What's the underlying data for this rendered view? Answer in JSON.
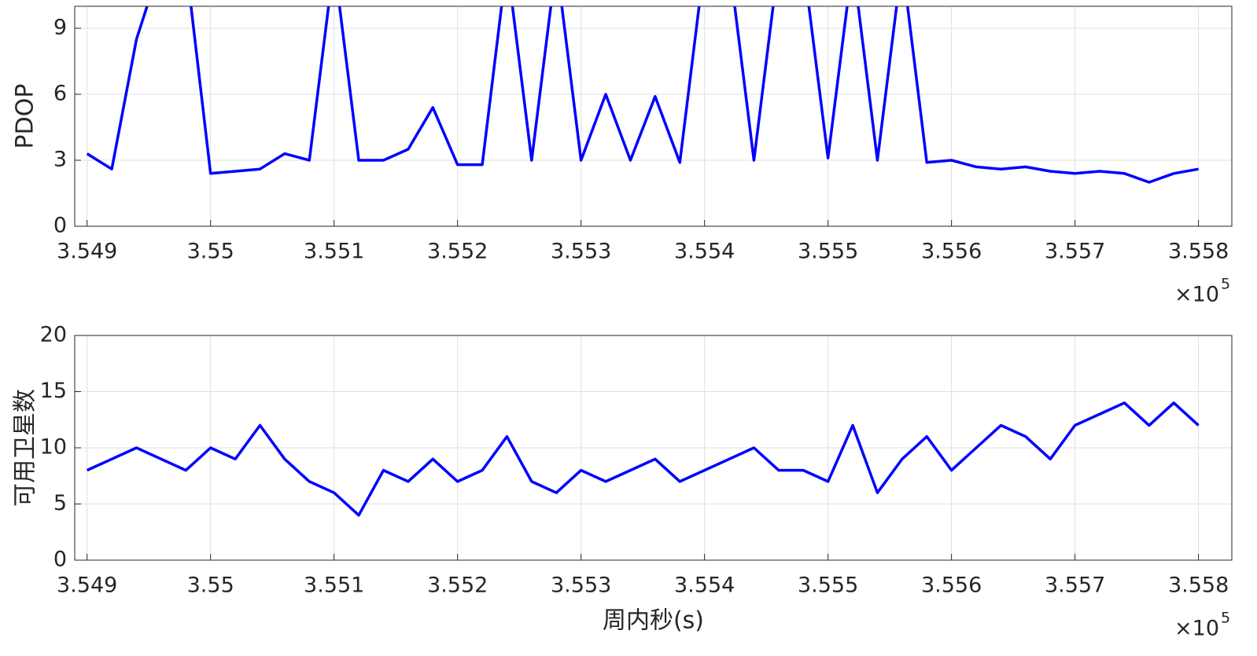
{
  "chart_data": [
    {
      "type": "line",
      "ylabel": "PDOP",
      "color": "#0000ff",
      "grid": true,
      "x": [
        354900,
        354920,
        354940,
        354960,
        354980,
        355000,
        355020,
        355040,
        355060,
        355080,
        355100,
        355120,
        355140,
        355160,
        355180,
        355200,
        355220,
        355240,
        355260,
        355280,
        355300,
        355320,
        355340,
        355360,
        355380,
        355400,
        355420,
        355440,
        355460,
        355480,
        355500,
        355520,
        355540,
        355560,
        355580,
        355600,
        355620,
        355640,
        355660,
        355680,
        355700,
        355720,
        355740,
        355760,
        355780,
        355800
      ],
      "values": [
        3.3,
        2.6,
        8.5,
        12,
        12,
        2.4,
        2.5,
        2.6,
        3.3,
        3.0,
        12,
        3.0,
        3.0,
        3.5,
        5.4,
        2.8,
        2.8,
        12,
        3.0,
        12,
        3.0,
        6.0,
        3.0,
        5.9,
        2.9,
        12,
        12,
        3.0,
        12,
        12,
        3.1,
        12,
        3.0,
        12,
        2.9,
        3.0,
        2.7,
        2.6,
        2.7,
        2.5,
        2.4,
        2.5,
        2.4,
        2.0,
        2.4,
        2.6
      ],
      "xlim": [
        354890,
        355827
      ],
      "ylim": [
        0,
        10
      ],
      "xticks": [
        {
          "value": 354900,
          "label": "3.549"
        },
        {
          "value": 355000,
          "label": "3.55"
        },
        {
          "value": 355100,
          "label": "3.551"
        },
        {
          "value": 355200,
          "label": "3.552"
        },
        {
          "value": 355300,
          "label": "3.553"
        },
        {
          "value": 355400,
          "label": "3.554"
        },
        {
          "value": 355500,
          "label": "3.555"
        },
        {
          "value": 355600,
          "label": "3.556"
        },
        {
          "value": 355700,
          "label": "3.557"
        },
        {
          "value": 355800,
          "label": "3.558"
        }
      ],
      "yticks": [
        0,
        3,
        6,
        9
      ],
      "x_multiplier": "×10",
      "x_multiplier_exp": "5"
    },
    {
      "type": "line",
      "ylabel": "可用卫星数",
      "xlabel": "周内秒(s)",
      "color": "#0000ff",
      "grid": true,
      "x": [
        354900,
        354920,
        354940,
        354960,
        354980,
        355000,
        355020,
        355040,
        355060,
        355080,
        355100,
        355120,
        355140,
        355160,
        355180,
        355200,
        355220,
        355240,
        355260,
        355280,
        355300,
        355320,
        355340,
        355360,
        355380,
        355400,
        355420,
        355440,
        355460,
        355480,
        355500,
        355520,
        355540,
        355560,
        355580,
        355600,
        355620,
        355640,
        355660,
        355680,
        355700,
        355720,
        355740,
        355760,
        355780,
        355800
      ],
      "values": [
        8,
        9,
        10,
        9,
        8,
        10,
        9,
        12,
        9,
        7,
        6,
        4,
        8,
        7,
        9,
        7,
        8,
        11,
        7,
        6,
        8,
        7,
        8,
        9,
        7,
        8,
        9,
        10,
        8,
        8,
        7,
        12,
        6,
        9,
        11,
        8,
        10,
        12,
        11,
        9,
        12,
        13,
        14,
        12,
        14,
        12
      ],
      "xlim": [
        354890,
        355827
      ],
      "ylim": [
        0,
        20
      ],
      "xticks": [
        {
          "value": 354900,
          "label": "3.549"
        },
        {
          "value": 355000,
          "label": "3.55"
        },
        {
          "value": 355100,
          "label": "3.551"
        },
        {
          "value": 355200,
          "label": "3.552"
        },
        {
          "value": 355300,
          "label": "3.553"
        },
        {
          "value": 355400,
          "label": "3.554"
        },
        {
          "value": 355500,
          "label": "3.555"
        },
        {
          "value": 355600,
          "label": "3.556"
        },
        {
          "value": 355700,
          "label": "3.557"
        },
        {
          "value": 355800,
          "label": "3.558"
        }
      ],
      "yticks": [
        0,
        5,
        10,
        15,
        20
      ],
      "x_multiplier": "×10",
      "x_multiplier_exp": "5"
    }
  ]
}
